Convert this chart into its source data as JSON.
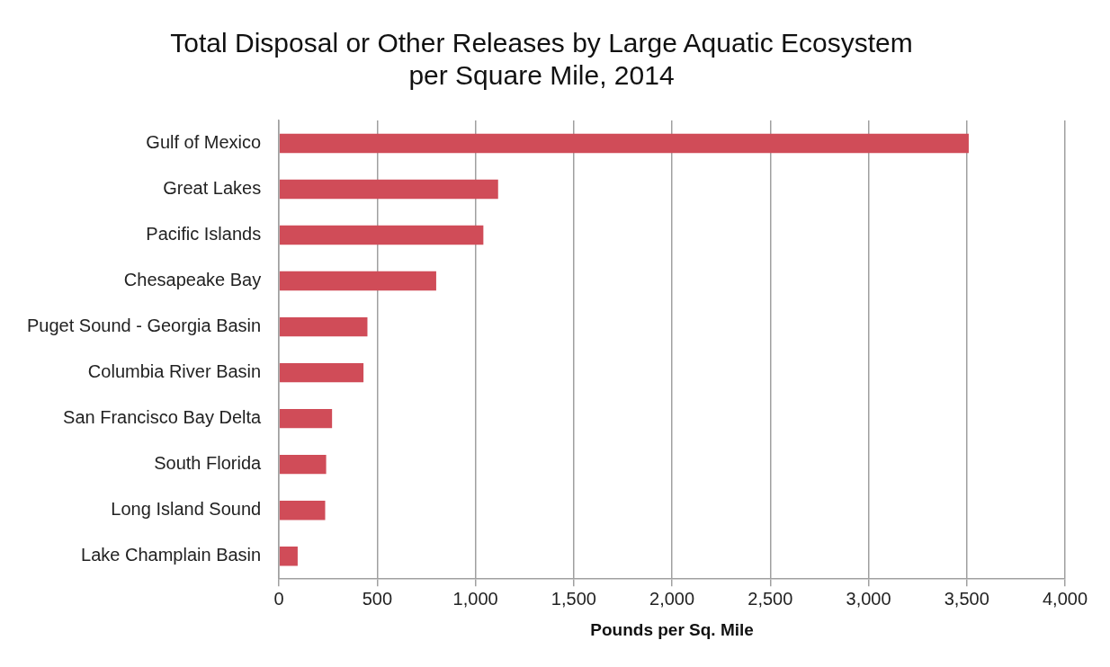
{
  "chart_data": {
    "type": "bar",
    "orientation": "horizontal",
    "title": [
      "Total Disposal or Other Releases by Large Aquatic Ecosystem",
      "per Square Mile, 2014"
    ],
    "xlabel": "Pounds per Sq. Mile",
    "categories": [
      "Gulf of Mexico",
      "Great Lakes",
      "Pacific Islands",
      "Chesapeake Bay",
      "Puget Sound - Georgia Basin",
      "Columbia River Basin",
      "San Francisco Bay Delta",
      "South Florida",
      "Long Island Sound",
      "Lake Champlain Basin"
    ],
    "values": [
      3510,
      1115,
      1040,
      800,
      450,
      430,
      270,
      240,
      235,
      95
    ],
    "color": "#d04c58",
    "xlim": [
      0,
      4000
    ],
    "xticks": [
      0,
      500,
      {
        "value": 1000,
        "label": "1,000"
      },
      {
        "value": 1500,
        "label": "1,500"
      },
      {
        "value": 2000,
        "label": "2,000"
      },
      {
        "value": 2500,
        "label": "2,500"
      },
      {
        "value": 3000,
        "label": "3,000"
      },
      {
        "value": 3500,
        "label": "3,500"
      },
      {
        "value": 4000,
        "label": "4,000"
      }
    ],
    "grid": "x",
    "legend": false
  }
}
